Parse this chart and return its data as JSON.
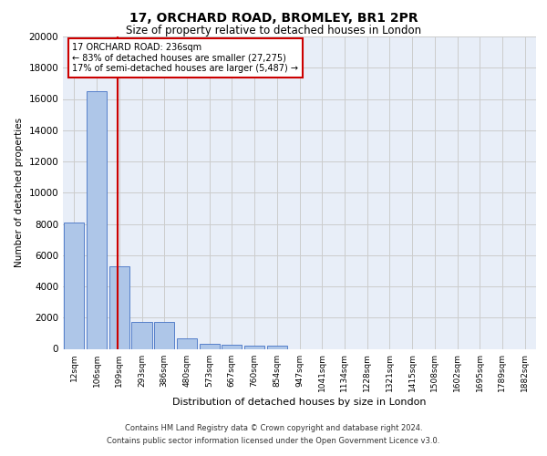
{
  "title1": "17, ORCHARD ROAD, BROMLEY, BR1 2PR",
  "title2": "Size of property relative to detached houses in London",
  "xlabel": "Distribution of detached houses by size in London",
  "ylabel": "Number of detached properties",
  "bar_categories": [
    "12sqm",
    "106sqm",
    "199sqm",
    "293sqm",
    "386sqm",
    "480sqm",
    "573sqm",
    "667sqm",
    "760sqm",
    "854sqm",
    "947sqm",
    "1041sqm",
    "1134sqm",
    "1228sqm",
    "1321sqm",
    "1415sqm",
    "1508sqm",
    "1602sqm",
    "1695sqm",
    "1789sqm",
    "1882sqm"
  ],
  "bar_values": [
    8100,
    16500,
    5300,
    1750,
    1750,
    650,
    350,
    280,
    200,
    180,
    0,
    0,
    0,
    0,
    0,
    0,
    0,
    0,
    0,
    0,
    0
  ],
  "bar_color": "#aec6e8",
  "bar_edge_color": "#4472c4",
  "highlight_color": "#cc0000",
  "red_line_x": 1.93,
  "annotation_text": "17 ORCHARD ROAD: 236sqm\n← 83% of detached houses are smaller (27,275)\n17% of semi-detached houses are larger (5,487) →",
  "annotation_box_color": "#cc0000",
  "ylim": [
    0,
    20000
  ],
  "yticks": [
    0,
    2000,
    4000,
    6000,
    8000,
    10000,
    12000,
    14000,
    16000,
    18000,
    20000
  ],
  "grid_color": "#cccccc",
  "background_color": "#e8eef8",
  "footer1": "Contains HM Land Registry data © Crown copyright and database right 2024.",
  "footer2": "Contains public sector information licensed under the Open Government Licence v3.0."
}
